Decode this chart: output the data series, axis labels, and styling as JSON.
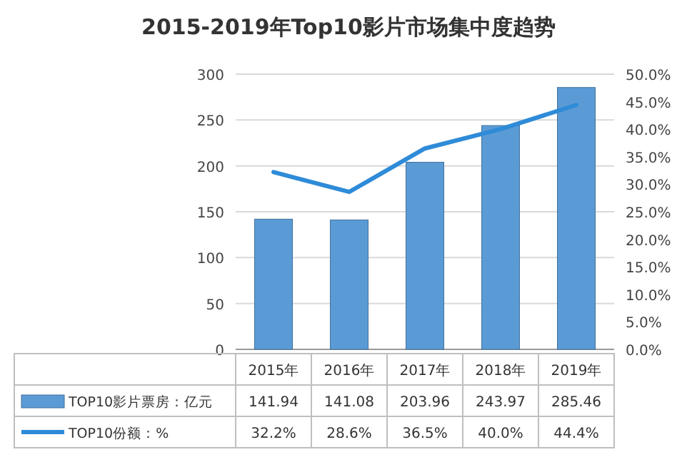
{
  "chart_data": {
    "type": "bar",
    "title": "2015-2019年Top10影片市场集中度趋势",
    "categories": [
      "2015年",
      "2016年",
      "2017年",
      "2018年",
      "2019年"
    ],
    "series": [
      {
        "name": "TOP10影片票房：亿元",
        "color": "#5b9bd5",
        "values": [
          141.94,
          141.08,
          203.96,
          243.97,
          285.46
        ],
        "value_labels": [
          "141.94",
          "141.08",
          "203.96",
          "243.97",
          "285.46"
        ]
      },
      {
        "name": "TOP10份额：%",
        "type": "line",
        "axis": "y2",
        "color": "#2e8bd8",
        "values": [
          32.2,
          28.6,
          36.5,
          40.0,
          44.4
        ],
        "value_labels": [
          "32.2%",
          "28.6%",
          "36.5%",
          "40.0%",
          "44.4%"
        ]
      }
    ],
    "ylim": [
      0,
      300
    ],
    "yticks": [
      0,
      50,
      100,
      150,
      200,
      250,
      300
    ],
    "y2lim": [
      0,
      50
    ],
    "y2ticks": [
      {
        "value": 0,
        "label": "0.0%"
      },
      {
        "value": 5,
        "label": "5.0%"
      },
      {
        "value": 10,
        "label": "10.0%"
      },
      {
        "value": 15,
        "label": "15.0%"
      },
      {
        "value": 20,
        "label": "20.0%"
      },
      {
        "value": 25,
        "label": "25.0%"
      },
      {
        "value": 30,
        "label": "30.0%"
      },
      {
        "value": 35,
        "label": "35.0%"
      },
      {
        "value": 40,
        "label": "40.0%"
      },
      {
        "value": 45,
        "label": "45.0%"
      },
      {
        "value": 50,
        "label": "50.0%"
      }
    ],
    "grid": "y",
    "legend": "bottom"
  }
}
